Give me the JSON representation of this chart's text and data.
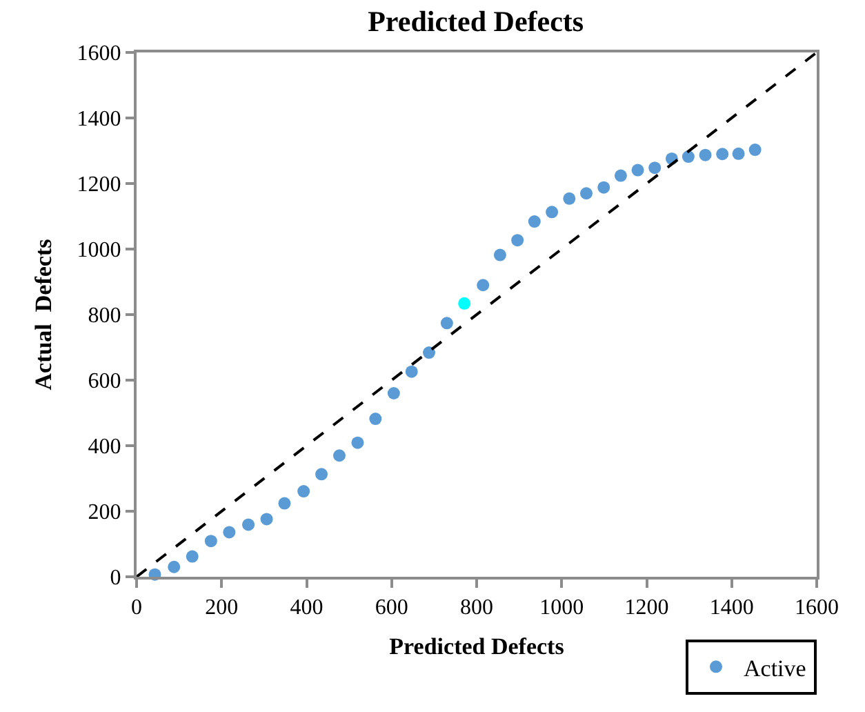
{
  "chart_data": {
    "type": "scatter",
    "title": "Predicted Defects",
    "xlabel": "Predicted Defects",
    "ylabel": "Actual  Defects",
    "xlim": [
      0,
      1600
    ],
    "xticks": [
      0,
      200,
      400,
      600,
      800,
      1000,
      1200,
      1400,
      1600
    ],
    "ylim": [
      0,
      1600
    ],
    "yticks": [
      0,
      200,
      400,
      600,
      800,
      1000,
      1200,
      1400,
      1600
    ],
    "grid": false,
    "legend": "bottom right",
    "series": [
      {
        "name": "Active",
        "marker": "circle",
        "color": "#5b9bd5",
        "x": [
          43,
          88,
          131,
          175,
          218,
          263,
          306,
          348,
          393,
          435,
          477,
          520,
          562,
          605,
          647,
          688,
          730,
          815,
          855,
          896,
          936,
          977,
          1018,
          1058,
          1099,
          1139,
          1179,
          1219,
          1259,
          1298,
          1338,
          1378,
          1416,
          1455
        ],
        "values": [
          7,
          30,
          62,
          109,
          136,
          159,
          176,
          224,
          261,
          313,
          370,
          409,
          482,
          560,
          626,
          684,
          774,
          890,
          982,
          1027,
          1084,
          1113,
          1154,
          1170,
          1188,
          1224,
          1241,
          1248,
          1276,
          1282,
          1287,
          1290,
          1291,
          1303
        ]
      },
      {
        "marker": "circle",
        "color": "#00ffff",
        "x": [
          771
        ],
        "values": [
          834
        ]
      },
      {
        "type": "line",
        "line_style": "dashed",
        "color": "#000000",
        "x": [
          0,
          1600
        ],
        "values": [
          0,
          1600
        ]
      }
    ]
  }
}
